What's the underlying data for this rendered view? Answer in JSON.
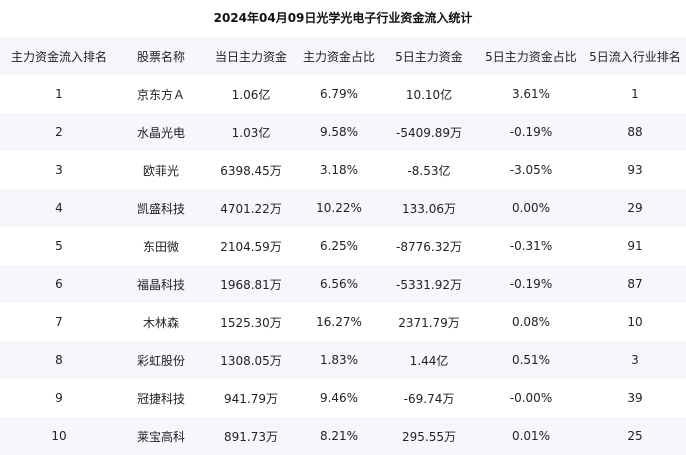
{
  "title": "2024年04月09日光学光电子行业资金流入统计",
  "columns": [
    "主力资金流入排名",
    "股票名称",
    "当日主力资金",
    "主力资金占比",
    "5日主力资金",
    "5日主力资金占比",
    "5日流入行业排名"
  ],
  "rows": [
    [
      "1",
      "京东方Ａ",
      "1.06亿",
      "6.79%",
      "10.10亿",
      "3.61%",
      "1"
    ],
    [
      "2",
      "水晶光电",
      "1.03亿",
      "9.58%",
      "-5409.89万",
      "-0.19%",
      "88"
    ],
    [
      "3",
      "欧菲光",
      "6398.45万",
      "3.18%",
      "-8.53亿",
      "-3.05%",
      "93"
    ],
    [
      "4",
      "凯盛科技",
      "4701.22万",
      "10.22%",
      "133.06万",
      "0.00%",
      "29"
    ],
    [
      "5",
      "东田微",
      "2104.59万",
      "6.25%",
      "-8776.32万",
      "-0.31%",
      "91"
    ],
    [
      "6",
      "福晶科技",
      "1968.81万",
      "6.56%",
      "-5331.92万",
      "-0.19%",
      "87"
    ],
    [
      "7",
      "木林森",
      "1525.30万",
      "16.27%",
      "2371.79万",
      "0.08%",
      "10"
    ],
    [
      "8",
      "彩虹股份",
      "1308.05万",
      "1.83%",
      "1.44亿",
      "0.51%",
      "3"
    ],
    [
      "9",
      "冠捷科技",
      "941.79万",
      "9.46%",
      "-69.74万",
      "-0.00%",
      "39"
    ],
    [
      "10",
      "莱宝高科",
      "891.73万",
      "8.21%",
      "295.55万",
      "0.01%",
      "25"
    ]
  ],
  "colors": {
    "stripe": "#f5f7fb",
    "text": "#222222"
  }
}
